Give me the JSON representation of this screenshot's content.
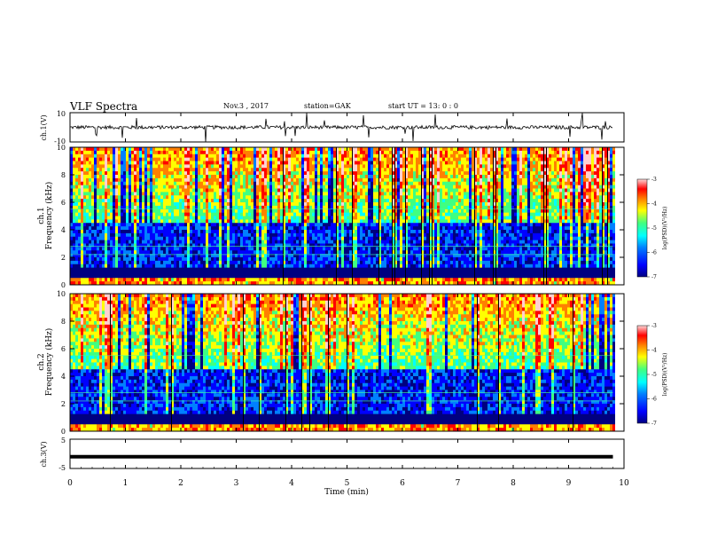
{
  "header": {
    "title": "VLF Spectra",
    "date": "Nov.3 , 2017",
    "station": "station=GAK",
    "start": "start UT = 13: 0 : 0"
  },
  "chart_data": [
    {
      "type": "line",
      "panel": "ch1-waveform",
      "ylabel": "ch.1(V)",
      "ylim": [
        -10,
        10
      ],
      "yticks": [
        "10",
        "-10"
      ],
      "xlim": [
        0,
        10
      ],
      "series": [
        {
          "values": "noisy waveform centered near 0 V with occasional spikes reaching ±10 V"
        }
      ]
    },
    {
      "type": "heatmap",
      "panel": "ch1-spectrogram",
      "ylabel": "ch.1\nFrequency (kHz)",
      "ylim": [
        0,
        10
      ],
      "yticks": [
        "0",
        "2",
        "4",
        "6",
        "8",
        "10"
      ],
      "xlim": [
        0,
        10
      ],
      "data_end_min": 9.8,
      "colorbar": {
        "label": "log(PSD)(V²/Hz)",
        "range": [
          -7,
          -3
        ],
        "ticks": [
          "-3",
          "-4",
          "-5",
          "-6",
          "-7"
        ]
      }
    },
    {
      "type": "heatmap",
      "panel": "ch2-spectrogram",
      "ylabel": "ch.2\nFrequency (kHz)",
      "ylim": [
        0,
        10
      ],
      "yticks": [
        "0",
        "2",
        "4",
        "6",
        "8",
        "10"
      ],
      "xlim": [
        0,
        10
      ],
      "data_end_min": 9.8,
      "colorbar": {
        "label": "log(PSD)(V²/Hz)",
        "range": [
          -7,
          -3
        ],
        "ticks": [
          "-3",
          "-4",
          "-5",
          "-6",
          "-7"
        ]
      }
    },
    {
      "type": "line",
      "panel": "ch3-waveform",
      "ylabel": "ch.3(V)",
      "ylim": [
        -5,
        5
      ],
      "yticks": [
        "5",
        "0",
        "-5"
      ],
      "xlim": [
        0,
        10
      ],
      "series": [
        {
          "values": "flat line at approximately -1 V"
        }
      ]
    }
  ],
  "xaxis": {
    "label": "Time (min)",
    "ticks": [
      "0",
      "1",
      "2",
      "3",
      "4",
      "5",
      "6",
      "7",
      "8",
      "9",
      "10"
    ]
  },
  "colors": {
    "colormap": [
      "#000080",
      "#0000ff",
      "#0080ff",
      "#00ffff",
      "#40ff80",
      "#ffff00",
      "#ff8000",
      "#ff0000",
      "#ffd0d0"
    ]
  }
}
